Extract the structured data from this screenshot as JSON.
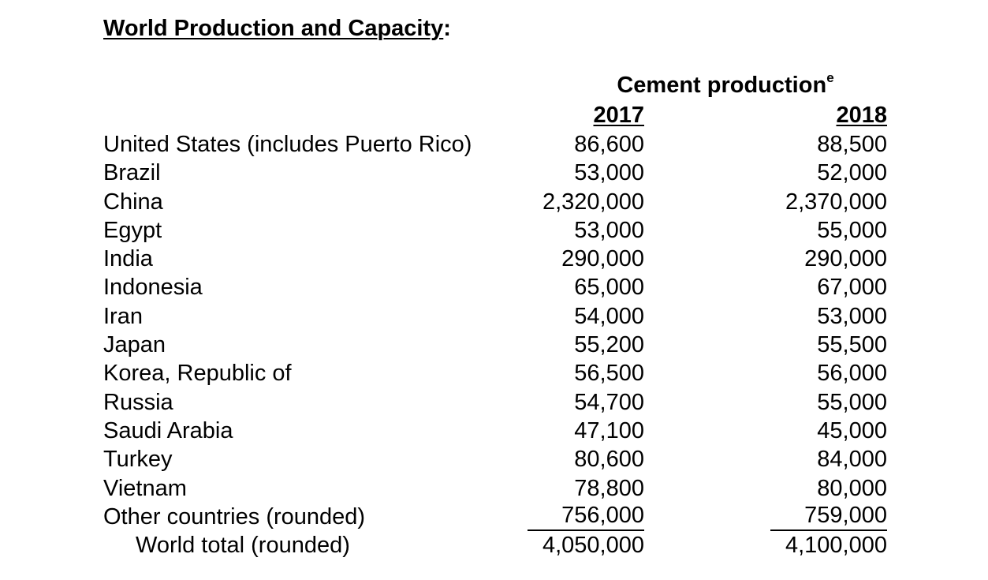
{
  "title": {
    "underlined": "World Production and Capacity",
    "suffix": ":"
  },
  "table": {
    "group_header": "Cement production",
    "group_header_note": "e",
    "columns": [
      "2017",
      "2018"
    ],
    "rows": [
      {
        "label": "United States (includes Puerto Rico)",
        "v2017": "86,600",
        "v2018": "88,500"
      },
      {
        "label": "Brazil",
        "v2017": "53,000",
        "v2018": "52,000"
      },
      {
        "label": "China",
        "v2017": "2,320,000",
        "v2018": "2,370,000"
      },
      {
        "label": "Egypt",
        "v2017": "53,000",
        "v2018": "55,000"
      },
      {
        "label": "India",
        "v2017": "290,000",
        "v2018": "290,000"
      },
      {
        "label": "Indonesia",
        "v2017": "65,000",
        "v2018": "67,000"
      },
      {
        "label": "Iran",
        "v2017": "54,000",
        "v2018": "53,000"
      },
      {
        "label": "Japan",
        "v2017": "55,200",
        "v2018": "55,500"
      },
      {
        "label": "Korea, Republic of",
        "v2017": "56,500",
        "v2018": "56,000"
      },
      {
        "label": "Russia",
        "v2017": "54,700",
        "v2018": "55,000"
      },
      {
        "label": "Saudi Arabia",
        "v2017": "47,100",
        "v2018": "45,000"
      },
      {
        "label": "Turkey",
        "v2017": "80,600",
        "v2018": "84,000"
      },
      {
        "label": "Vietnam",
        "v2017": "78,800",
        "v2018": "80,000"
      },
      {
        "label": "Other countries (rounded)",
        "v2017": "756,000",
        "v2018": "759,000"
      },
      {
        "label": "World total (rounded)",
        "v2017": "4,050,000",
        "v2018": "4,100,000"
      }
    ]
  }
}
